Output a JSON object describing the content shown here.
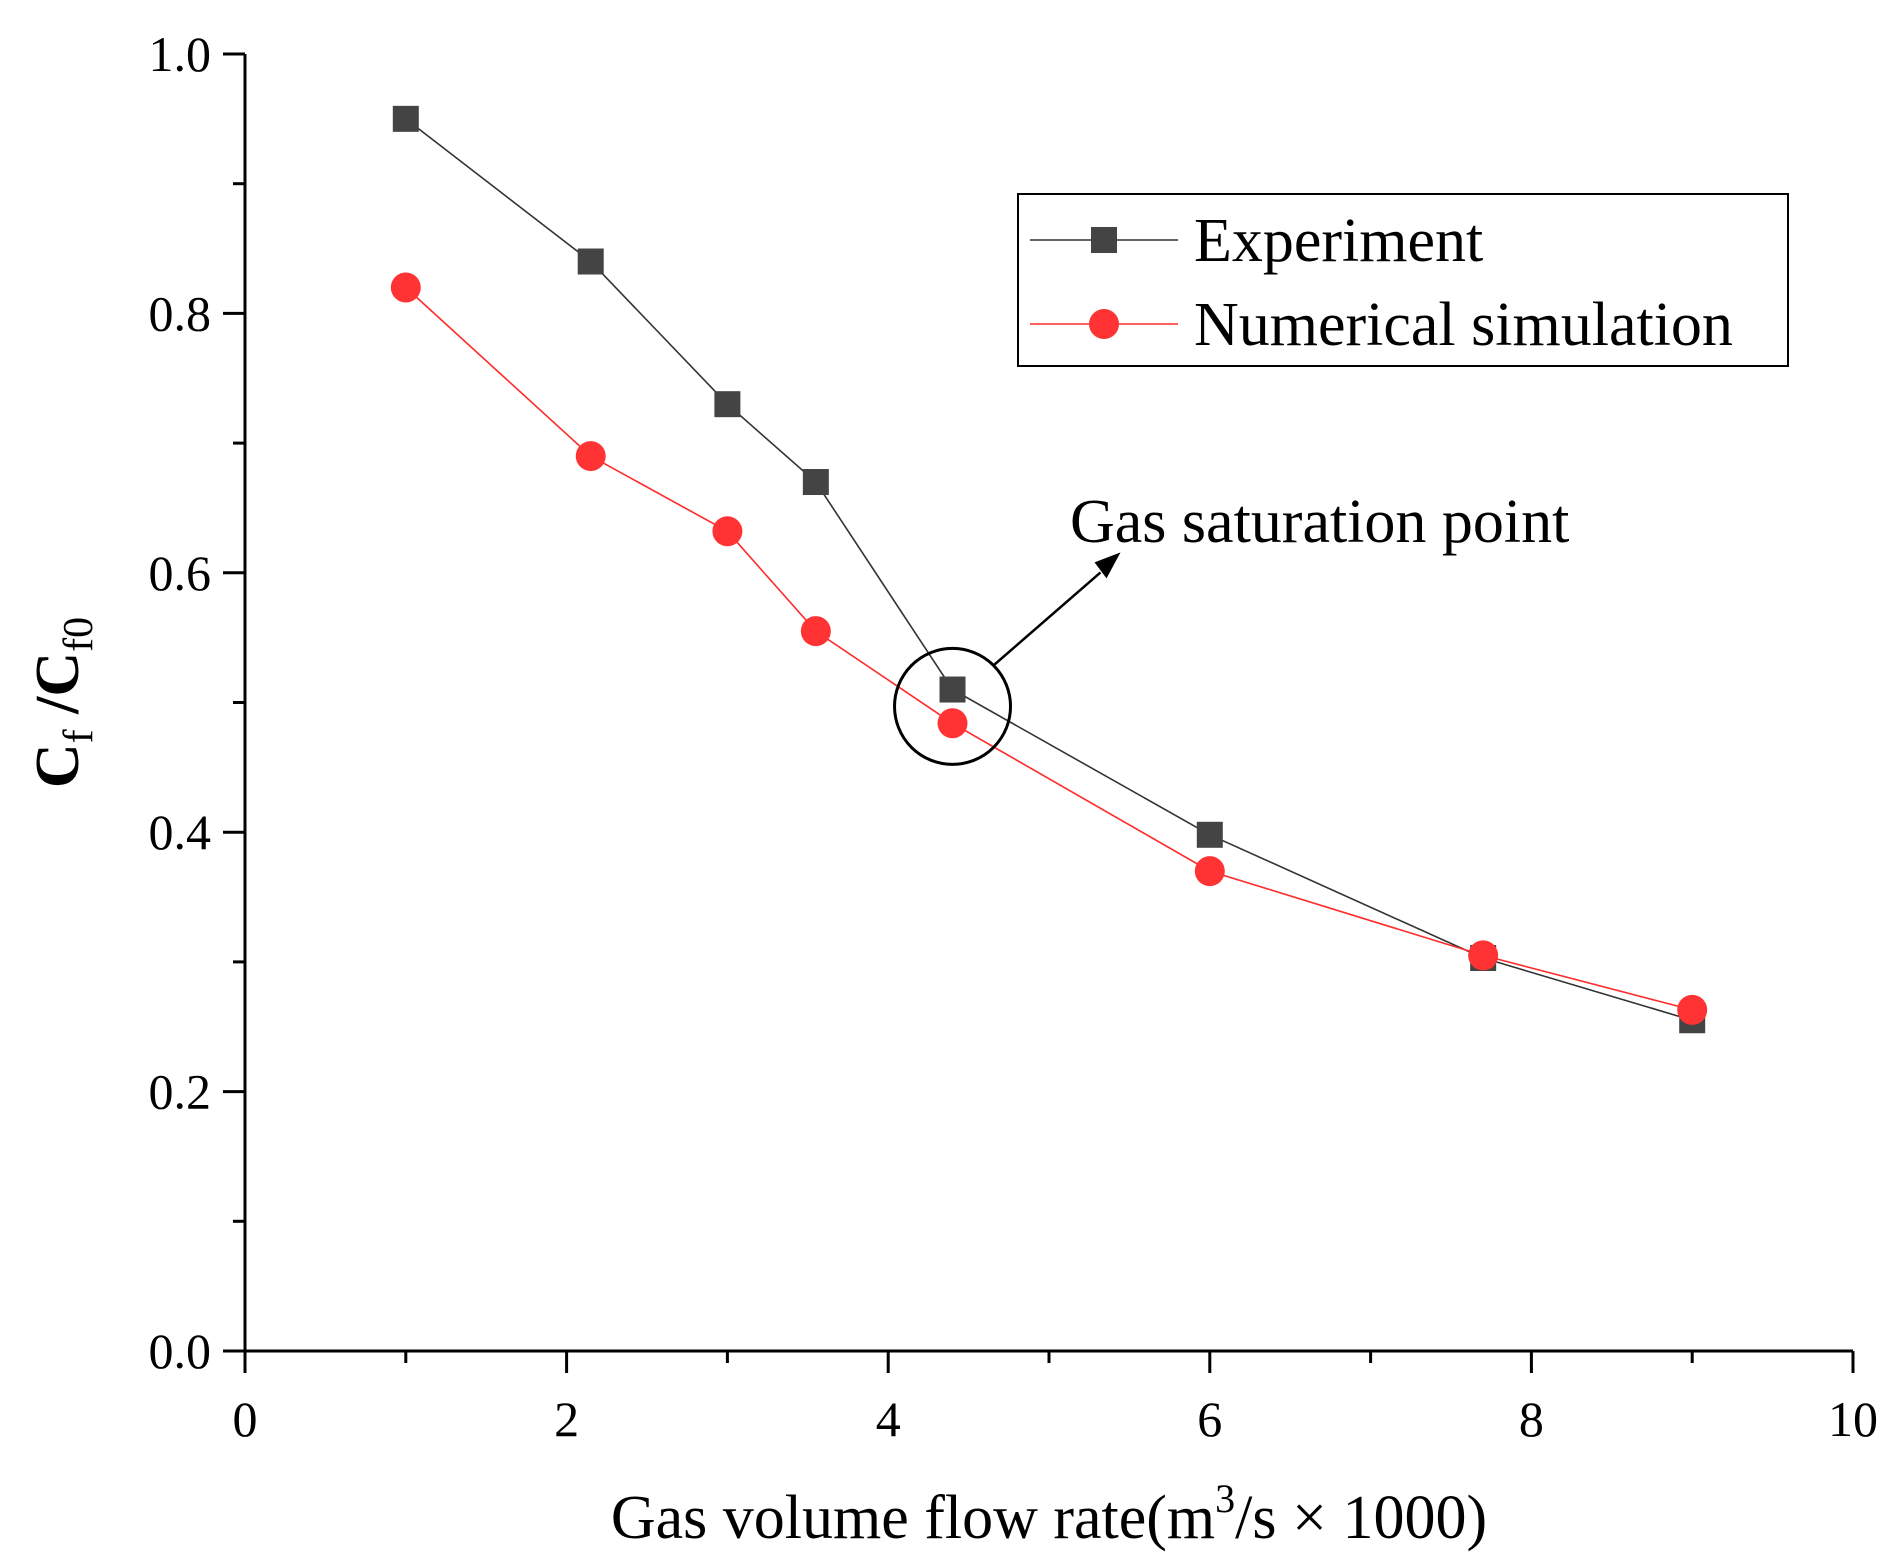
{
  "chart_data": {
    "type": "line",
    "title": "",
    "xlabel": {
      "prefix": "Gas volume flow rate(m",
      "superscript": "3",
      "suffix": "/s × 1000)"
    },
    "ylabel": {
      "base1": "C",
      "sub1": "f",
      "middle": " /",
      "base2": "C",
      "sub2": "f0"
    },
    "xlim": [
      0,
      10
    ],
    "ylim": [
      0.0,
      1.0
    ],
    "xticks": [
      0,
      2,
      4,
      6,
      8,
      10
    ],
    "xtick_labels": [
      "0",
      "2",
      "4",
      "6",
      "8",
      "10"
    ],
    "yticks": [
      0.0,
      0.2,
      0.4,
      0.6,
      0.8,
      1.0
    ],
    "ytick_labels": [
      "0.0",
      "0.2",
      "0.4",
      "0.6",
      "0.8",
      "1.0"
    ],
    "grid": false,
    "legend_position": "top-right",
    "series": [
      {
        "name": "Experiment",
        "marker": "square",
        "color": "#444444",
        "x": [
          1.0,
          2.15,
          3.0,
          3.55,
          4.4,
          6.0,
          7.7,
          9.0
        ],
        "y": [
          0.95,
          0.84,
          0.73,
          0.67,
          0.51,
          0.398,
          0.303,
          0.255
        ]
      },
      {
        "name": "Numerical simulation",
        "marker": "circle",
        "color": "#ff3333",
        "x": [
          1.0,
          2.15,
          3.0,
          3.55,
          4.4,
          6.0,
          7.7,
          9.0
        ],
        "y": [
          0.82,
          0.69,
          0.632,
          0.555,
          0.484,
          0.37,
          0.305,
          0.263
        ]
      }
    ],
    "annotations": [
      {
        "text": "Gas saturation point",
        "target_x": 4.4,
        "target_y": 0.497
      }
    ]
  }
}
